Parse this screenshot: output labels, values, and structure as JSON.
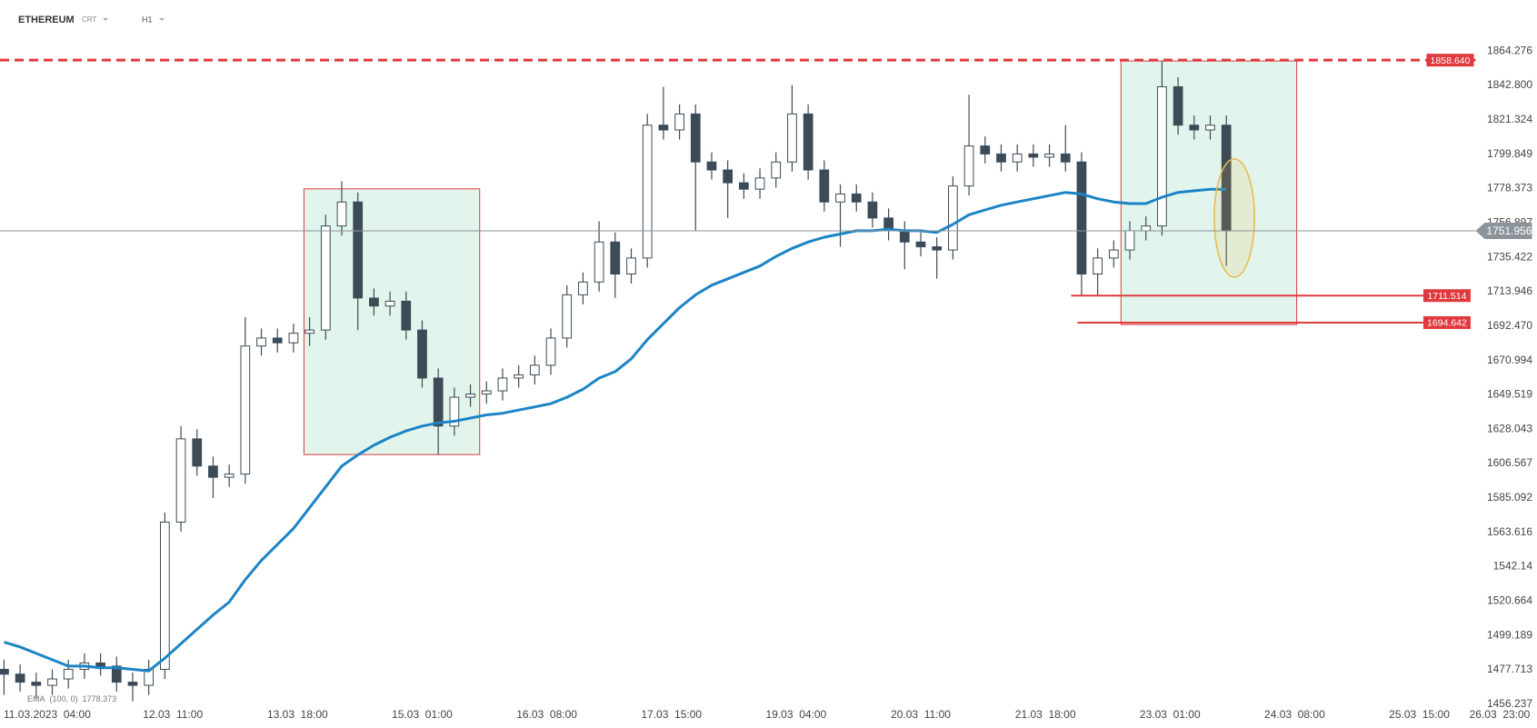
{
  "chart_data": {
    "type": "candlestick",
    "symbol": "ETHEREUM",
    "market": "CRT",
    "interval": "H1",
    "x": [
      0,
      4,
      8,
      12,
      16,
      20,
      24,
      28,
      32,
      36,
      40,
      44,
      48,
      52,
      56,
      60,
      64,
      68,
      72,
      76,
      80,
      84,
      88,
      92,
      96,
      100,
      104,
      108,
      112,
      116,
      120,
      124,
      128,
      132,
      136,
      140,
      144,
      148,
      152,
      156,
      160,
      164,
      168,
      172,
      176,
      180,
      184,
      188,
      192,
      196,
      200,
      204,
      208,
      212,
      216,
      220,
      224,
      228,
      232,
      236,
      240,
      244,
      248,
      252,
      256,
      260,
      264,
      268,
      272,
      276,
      280,
      284,
      288,
      292,
      296,
      300,
      304
    ],
    "open": [
      1478,
      1475,
      1470,
      1468,
      1472,
      1478,
      1482,
      1480,
      1470,
      1468,
      1478,
      1570,
      1622,
      1605,
      1598,
      1600,
      1680,
      1685,
      1682,
      1688,
      1690,
      1755,
      1770,
      1710,
      1705,
      1708,
      1690,
      1660,
      1630,
      1648,
      1650,
      1652,
      1660,
      1662,
      1668,
      1685,
      1712,
      1720,
      1745,
      1725,
      1735,
      1818,
      1815,
      1825,
      1795,
      1790,
      1782,
      1778,
      1785,
      1795,
      1825,
      1790,
      1770,
      1775,
      1770,
      1760,
      1752,
      1745,
      1742,
      1740,
      1780,
      1805,
      1800,
      1795,
      1800,
      1798,
      1800,
      1795,
      1725,
      1735,
      1740,
      1752,
      1755,
      1842,
      1818,
      1815,
      1818
    ],
    "high": [
      1484,
      1481,
      1476,
      1478,
      1484,
      1488,
      1488,
      1486,
      1476,
      1484,
      1576,
      1630,
      1628,
      1611,
      1606,
      1698,
      1691,
      1691,
      1694,
      1698,
      1762,
      1783,
      1776,
      1716,
      1714,
      1714,
      1696,
      1666,
      1654,
      1656,
      1658,
      1666,
      1668,
      1674,
      1691,
      1718,
      1726,
      1758,
      1751,
      1741,
      1825,
      1842,
      1831,
      1831,
      1801,
      1796,
      1788,
      1791,
      1801,
      1843,
      1831,
      1796,
      1781,
      1781,
      1776,
      1766,
      1758,
      1751,
      1748,
      1786,
      1837,
      1811,
      1806,
      1806,
      1806,
      1806,
      1818,
      1801,
      1741,
      1746,
      1758,
      1761,
      1858,
      1848,
      1824,
      1824,
      1824
    ],
    "low": [
      1462,
      1464,
      1460,
      1462,
      1466,
      1472,
      1474,
      1464,
      1458,
      1462,
      1472,
      1564,
      1599,
      1585,
      1592,
      1594,
      1674,
      1676,
      1676,
      1680,
      1684,
      1749,
      1690,
      1699,
      1699,
      1684,
      1654,
      1612,
      1624,
      1642,
      1644,
      1646,
      1654,
      1656,
      1662,
      1679,
      1706,
      1714,
      1710,
      1719,
      1729,
      1809,
      1809,
      1752,
      1784,
      1760,
      1772,
      1772,
      1779,
      1789,
      1784,
      1764,
      1742,
      1764,
      1754,
      1746,
      1728,
      1736,
      1722,
      1734,
      1774,
      1794,
      1789,
      1789,
      1792,
      1792,
      1789,
      1712,
      1712,
      1729,
      1734,
      1746,
      1749,
      1812,
      1809,
      1809,
      1730
    ],
    "close": [
      1475,
      1470,
      1468,
      1472,
      1478,
      1482,
      1480,
      1470,
      1468,
      1478,
      1570,
      1622,
      1605,
      1598,
      1600,
      1680,
      1685,
      1682,
      1688,
      1690,
      1755,
      1770,
      1710,
      1705,
      1708,
      1690,
      1660,
      1630,
      1648,
      1650,
      1652,
      1660,
      1662,
      1668,
      1685,
      1712,
      1720,
      1745,
      1725,
      1735,
      1818,
      1815,
      1825,
      1795,
      1790,
      1782,
      1778,
      1785,
      1795,
      1825,
      1790,
      1770,
      1775,
      1770,
      1760,
      1752,
      1745,
      1742,
      1740,
      1780,
      1805,
      1800,
      1795,
      1800,
      1798,
      1800,
      1795,
      1725,
      1735,
      1740,
      1752,
      1755,
      1842,
      1818,
      1815,
      1818,
      1752
    ],
    "up_color": "#ffffff",
    "down_color": "#3d4b57",
    "wick_color": "#3d4b57",
    "ema": {
      "name": "EMA",
      "params": "(100, 0)",
      "last": 1778.373,
      "color": "#1b84c6",
      "values": [
        1495,
        1492,
        1488,
        1484,
        1480,
        1480,
        1479,
        1479,
        1478,
        1477,
        1485,
        1494,
        1503,
        1512,
        1520,
        1534,
        1546,
        1556,
        1566,
        1579,
        1592,
        1605,
        1612,
        1618,
        1623,
        1627,
        1630,
        1632,
        1633,
        1635,
        1637,
        1638,
        1640,
        1642,
        1644,
        1648,
        1653,
        1660,
        1664,
        1672,
        1684,
        1694,
        1704,
        1712,
        1718,
        1722,
        1726,
        1730,
        1736,
        1741,
        1745,
        1748,
        1750,
        1752,
        1752,
        1753,
        1752,
        1752,
        1751,
        1756,
        1762,
        1765,
        1768,
        1770,
        1772,
        1774,
        1776,
        1775,
        1772,
        1770,
        1769,
        1769,
        1773,
        1776,
        1777,
        1778,
        1778
      ]
    },
    "xlim": [
      -1,
      372
    ],
    "ylim": [
      1447.6,
      1896.2
    ],
    "xticks": [
      {
        "value": 11,
        "label": "11.03.2023  04:00"
      },
      {
        "value": 42,
        "label": "12.03  11:00"
      },
      {
        "value": 73,
        "label": "13.03  18:00"
      },
      {
        "value": 104,
        "label": "15.03  01:00"
      },
      {
        "value": 135,
        "label": "16.03  08:00"
      },
      {
        "value": 166,
        "label": "17.03  15:00"
      },
      {
        "value": 197,
        "label": "19.03  04:00"
      },
      {
        "value": 228,
        "label": "20.03  11:00"
      },
      {
        "value": 259,
        "label": "21.03  18:00"
      },
      {
        "value": 290,
        "label": "23.03  01:00"
      },
      {
        "value": 321,
        "label": "24.03  08:00"
      },
      {
        "value": 352,
        "label": "25.03  15:00"
      },
      {
        "value": 372,
        "label": "26.03  23:00"
      }
    ],
    "yticks": [
      1864.276,
      {
        "value": 1842.8,
        "label": "1842.800"
      },
      1821.324,
      1799.849,
      1778.373,
      1756.897,
      1735.422,
      1713.946,
      {
        "value": 1692.47,
        "label": "1692.470"
      },
      1670.994,
      1649.519,
      1628.043,
      1606.567,
      1585.092,
      1563.616,
      1542.14,
      1520.664,
      1499.189,
      1477.713,
      1456.237
    ],
    "grid": false,
    "zones": [
      {
        "x": [
          74.6,
          118.3
        ],
        "y": [
          1612.2,
          1778.2
        ]
      },
      {
        "x": [
          277.8,
          321.5
        ],
        "y": [
          1693.4,
          1858.1
        ]
      }
    ],
    "zone_fill": "#e2f5ec",
    "zone_stroke": "#e0393e",
    "ellipse": {
      "x": [
        301,
        311
      ],
      "y": [
        1723,
        1797
      ],
      "color": "#e8b84a"
    },
    "levels": [
      {
        "value": 1858.64,
        "label": "1858.640",
        "x": [
          -1,
          366
        ],
        "style": "dashed",
        "color": "#e0393e"
      },
      {
        "value": 1711.514,
        "x": [
          265.4,
          353
        ],
        "style": "solid",
        "color": "#e0393e"
      },
      {
        "value": 1694.642,
        "x": [
          267,
          353
        ],
        "style": "solid",
        "color": "#e0393e"
      },
      {
        "value": 1751.956,
        "x": [
          -1,
          366
        ],
        "style": "current",
        "color": "#8c949b"
      }
    ]
  }
}
